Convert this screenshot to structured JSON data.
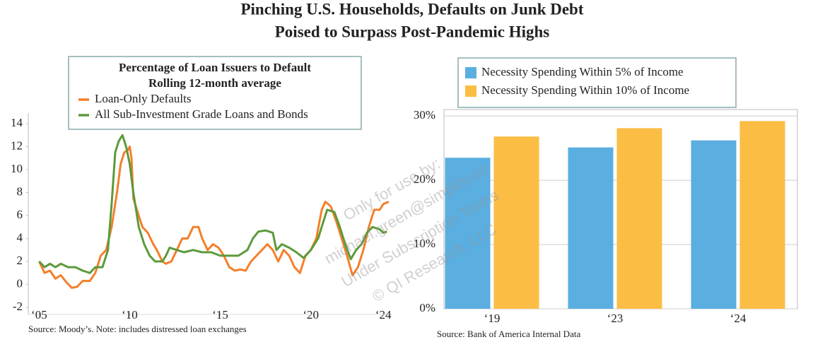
{
  "title": [
    "Pinching U.S. Households, Defaults on Junk Debt",
    "Poised to Surpass Post-Pandemic Highs"
  ],
  "watermark": [
    "Only for use by:",
    "michael.green@simplify.us",
    "Under Subscription Terms",
    "© QI Research, LLC"
  ],
  "chart_data": [
    {
      "type": "line",
      "title": "Percentage of Loan Issuers to Default",
      "subtitle": "Rolling 12-month average",
      "note": "Source: Moody’s. Note: includes distressed loan exchanges",
      "xlim": [
        2004.4,
        2024.5
      ],
      "xticks": [
        {
          "value": 2005,
          "label": "‘05"
        },
        {
          "value": 2010,
          "label": "‘10"
        },
        {
          "value": 2015,
          "label": "‘15"
        },
        {
          "value": 2020,
          "label": "‘20"
        },
        {
          "value": 2024,
          "label": "‘24"
        }
      ],
      "ylim": [
        -2,
        14
      ],
      "yticks": [
        -2,
        0,
        2,
        4,
        6,
        8,
        10,
        12,
        14
      ],
      "series": [
        {
          "name": "Loan-Only Defaults",
          "color": "#f47f2a",
          "x": [
            2005.0,
            2005.3,
            2005.6,
            2005.9,
            2006.2,
            2006.5,
            2006.8,
            2007.1,
            2007.4,
            2007.8,
            2008.1,
            2008.4,
            2008.7,
            2009.0,
            2009.3,
            2009.5,
            2009.7,
            2009.9,
            2010.0,
            2010.1,
            2010.2,
            2010.4,
            2010.7,
            2011.0,
            2011.3,
            2011.5,
            2011.8,
            2012.0,
            2012.3,
            2012.6,
            2012.9,
            2013.2,
            2013.5,
            2013.8,
            2014.0,
            2014.3,
            2014.6,
            2014.9,
            2015.2,
            2015.5,
            2015.8,
            2016.1,
            2016.4,
            2016.7,
            2017.0,
            2017.3,
            2017.6,
            2017.9,
            2018.2,
            2018.5,
            2018.8,
            2019.1,
            2019.4,
            2019.7,
            2020.0,
            2020.3,
            2020.6,
            2020.8,
            2021.1,
            2021.4,
            2021.7,
            2022.0,
            2022.3,
            2022.6,
            2022.9,
            2023.2,
            2023.5,
            2023.8,
            2024.0,
            2024.3
          ],
          "values": [
            2.0,
            1.0,
            1.2,
            0.5,
            0.8,
            0.2,
            -0.3,
            -0.2,
            0.3,
            0.3,
            1.0,
            2.5,
            3.0,
            5.0,
            8.0,
            10.5,
            11.5,
            11.7,
            12.0,
            11.0,
            7.5,
            6.5,
            5.0,
            4.5,
            3.5,
            3.0,
            2.0,
            1.8,
            2.0,
            3.0,
            4.0,
            4.0,
            5.0,
            5.0,
            4.0,
            3.0,
            3.5,
            3.2,
            2.5,
            1.5,
            1.2,
            1.3,
            1.2,
            2.0,
            2.5,
            3.0,
            3.5,
            3.0,
            2.0,
            3.0,
            2.5,
            1.5,
            1.0,
            2.5,
            3.0,
            4.0,
            6.5,
            7.2,
            6.8,
            5.5,
            4.0,
            2.5,
            0.8,
            1.5,
            3.0,
            5.0,
            6.5,
            6.5,
            7.0,
            7.2
          ]
        },
        {
          "name": "All Sub-Investment Grade Loans and Bonds",
          "color": "#5c9a3a",
          "x": [
            2005.0,
            2005.3,
            2005.6,
            2005.9,
            2006.2,
            2006.6,
            2007.0,
            2007.4,
            2007.8,
            2008.1,
            2008.5,
            2008.8,
            2009.0,
            2009.2,
            2009.4,
            2009.6,
            2009.8,
            2010.0,
            2010.2,
            2010.5,
            2010.8,
            2011.1,
            2011.4,
            2011.8,
            2012.0,
            2012.2,
            2012.6,
            2013.0,
            2013.5,
            2014.0,
            2014.5,
            2015.0,
            2015.5,
            2016.0,
            2016.5,
            2016.8,
            2017.1,
            2017.5,
            2017.9,
            2018.1,
            2018.4,
            2018.8,
            2019.2,
            2019.6,
            2020.0,
            2020.4,
            2020.7,
            2020.9,
            2021.3,
            2021.6,
            2021.9,
            2022.2,
            2022.5,
            2022.8,
            2023.1,
            2023.4,
            2023.8,
            2024.0,
            2024.2
          ],
          "values": [
            2.0,
            1.5,
            1.8,
            1.5,
            1.8,
            1.5,
            1.5,
            1.2,
            1.0,
            1.5,
            1.5,
            3.0,
            7.0,
            11.5,
            12.5,
            13.0,
            12.0,
            10.5,
            8.0,
            5.0,
            3.5,
            2.5,
            2.0,
            2.0,
            2.5,
            3.2,
            3.0,
            2.8,
            3.0,
            2.8,
            2.8,
            2.5,
            2.5,
            2.5,
            3.0,
            4.0,
            4.6,
            4.7,
            4.5,
            3.0,
            3.5,
            3.2,
            2.8,
            2.3,
            3.0,
            4.0,
            5.5,
            6.5,
            6.3,
            5.0,
            3.5,
            2.2,
            3.0,
            3.5,
            4.5,
            5.0,
            4.8,
            4.5,
            4.6
          ]
        }
      ]
    },
    {
      "type": "bar",
      "note": "Source:  Bank of America Internal Data",
      "categories": [
        "‘19",
        "‘23",
        "‘24"
      ],
      "ylim": [
        0,
        31
      ],
      "yticks": [
        {
          "value": 0,
          "label": "0%"
        },
        {
          "value": 10,
          "label": "10%"
        },
        {
          "value": 20,
          "label": "20%"
        },
        {
          "value": 30,
          "label": "30%"
        }
      ],
      "grid": true,
      "series": [
        {
          "name": "Necessity Spending Within 5% of Income",
          "color": "#5aaee0",
          "values": [
            23.5,
            25.1,
            26.2
          ]
        },
        {
          "name": "Necessity Spending Within 10% of Income",
          "color": "#fbbd44",
          "values": [
            26.8,
            28.1,
            29.2
          ]
        }
      ]
    }
  ]
}
